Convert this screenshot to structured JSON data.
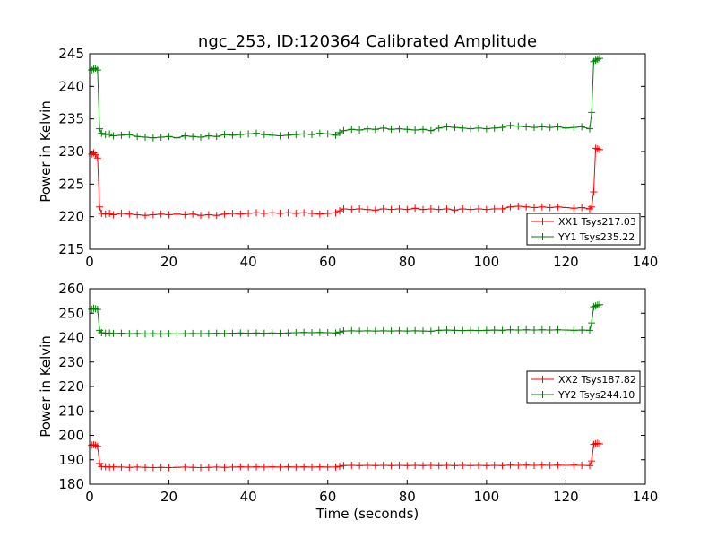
{
  "figure": {
    "title": "ngc_253, ID:120364 Calibrated Amplitude",
    "xlabel": "Time (seconds)"
  },
  "colors": {
    "red": "#ff0000",
    "green": "#008000",
    "axis": "#000000"
  },
  "chart_data": [
    {
      "type": "line",
      "title": "ngc_253, ID:120364 Calibrated Amplitude",
      "xlabel": "",
      "ylabel": "Power in Kelvin",
      "xlim": [
        0,
        140
      ],
      "ylim": [
        215,
        245
      ],
      "xticks": [
        0,
        20,
        40,
        60,
        80,
        100,
        120,
        140
      ],
      "yticks": [
        215,
        220,
        225,
        230,
        235,
        240,
        245
      ],
      "grid": false,
      "legend": "lower-right",
      "series": [
        {
          "name": "XX1 Tsys217.03",
          "color": "#ff0000",
          "x": [
            0.5,
            1,
            1.5,
            2,
            2.5,
            3,
            4,
            5,
            6,
            8,
            10,
            12,
            14,
            16,
            18,
            20,
            22,
            24,
            26,
            28,
            30,
            32,
            34,
            36,
            38,
            40,
            42,
            44,
            46,
            48,
            50,
            52,
            54,
            56,
            58,
            60,
            62,
            63,
            64,
            66,
            68,
            70,
            72,
            74,
            76,
            78,
            80,
            82,
            84,
            86,
            88,
            90,
            92,
            94,
            96,
            98,
            100,
            102,
            104,
            106,
            108,
            110,
            112,
            114,
            116,
            118,
            120,
            122,
            124,
            126,
            126.5,
            127,
            127.5,
            128,
            128.5
          ],
          "values": [
            229.6,
            229.8,
            229.5,
            229.0,
            221.5,
            220.5,
            220.4,
            220.5,
            220.3,
            220.5,
            220.4,
            220.3,
            220.2,
            220.3,
            220.4,
            220.3,
            220.4,
            220.3,
            220.4,
            220.2,
            220.3,
            220.2,
            220.4,
            220.5,
            220.4,
            220.5,
            220.6,
            220.5,
            220.6,
            220.5,
            220.6,
            220.5,
            220.6,
            220.5,
            220.4,
            220.5,
            220.6,
            220.9,
            221.2,
            221.1,
            221.2,
            221.1,
            221.0,
            221.2,
            221.1,
            221.2,
            221.1,
            221.3,
            221.1,
            221.2,
            221.1,
            221.2,
            221.0,
            221.2,
            221.1,
            221.2,
            221.1,
            221.2,
            221.2,
            221.5,
            221.6,
            221.5,
            221.4,
            221.5,
            221.4,
            221.5,
            221.4,
            221.3,
            221.4,
            221.2,
            221.5,
            223.8,
            230.5,
            230.4,
            230.3
          ]
        },
        {
          "name": "YY1 Tsys235.22",
          "color": "#008000",
          "x": [
            0.5,
            1,
            1.5,
            2,
            2.5,
            3,
            4,
            5,
            6,
            8,
            10,
            12,
            14,
            16,
            18,
            20,
            22,
            24,
            26,
            28,
            30,
            32,
            34,
            36,
            38,
            40,
            42,
            44,
            46,
            48,
            50,
            52,
            54,
            56,
            58,
            60,
            62,
            63,
            64,
            66,
            68,
            70,
            72,
            74,
            76,
            78,
            80,
            82,
            84,
            86,
            88,
            90,
            92,
            94,
            96,
            98,
            100,
            102,
            104,
            106,
            108,
            110,
            112,
            114,
            116,
            118,
            120,
            122,
            124,
            126,
            126.5,
            127,
            127.5,
            128,
            128.5
          ],
          "values": [
            242.5,
            242.7,
            242.8,
            242.5,
            233.5,
            232.8,
            232.6,
            232.7,
            232.4,
            232.5,
            232.6,
            232.3,
            232.2,
            232.1,
            232.2,
            232.3,
            232.1,
            232.4,
            232.3,
            232.2,
            232.4,
            232.3,
            232.6,
            232.5,
            232.6,
            232.7,
            232.8,
            232.6,
            232.5,
            232.4,
            232.5,
            232.6,
            232.7,
            232.6,
            232.8,
            232.7,
            232.5,
            232.9,
            233.2,
            233.4,
            233.3,
            233.5,
            233.4,
            233.6,
            233.4,
            233.5,
            233.4,
            233.3,
            233.4,
            233.2,
            233.6,
            233.8,
            233.7,
            233.6,
            233.5,
            233.6,
            233.5,
            233.6,
            233.7,
            234.0,
            233.9,
            233.8,
            233.7,
            233.8,
            233.7,
            233.8,
            233.6,
            233.7,
            233.8,
            233.5,
            236.0,
            243.8,
            244.0,
            244.2,
            244.3
          ]
        }
      ]
    },
    {
      "type": "line",
      "title": "",
      "xlabel": "Time (seconds)",
      "ylabel": "Power in Kelvin",
      "xlim": [
        0,
        140
      ],
      "ylim": [
        180,
        260
      ],
      "xticks": [
        0,
        20,
        40,
        60,
        80,
        100,
        120,
        140
      ],
      "yticks": [
        180,
        190,
        200,
        210,
        220,
        230,
        240,
        250,
        260
      ],
      "grid": false,
      "legend": "center-right",
      "series": [
        {
          "name": "XX2 Tsys187.82",
          "color": "#ff0000",
          "x": [
            0.5,
            1,
            1.5,
            2,
            2.5,
            3,
            4,
            5,
            6,
            8,
            10,
            12,
            14,
            16,
            18,
            20,
            22,
            24,
            26,
            28,
            30,
            32,
            34,
            36,
            38,
            40,
            42,
            44,
            46,
            48,
            50,
            52,
            54,
            56,
            58,
            60,
            62,
            63,
            64,
            66,
            68,
            70,
            72,
            74,
            76,
            78,
            80,
            82,
            84,
            86,
            88,
            90,
            92,
            94,
            96,
            98,
            100,
            102,
            104,
            106,
            108,
            110,
            112,
            114,
            116,
            118,
            120,
            122,
            124,
            126,
            126.5,
            127,
            127.5,
            128,
            128.5
          ],
          "values": [
            196.0,
            196.2,
            195.9,
            195.5,
            188.5,
            187.2,
            187.1,
            187.0,
            187.1,
            187.0,
            186.9,
            187.0,
            186.9,
            186.8,
            186.9,
            186.8,
            186.9,
            187.0,
            186.9,
            186.8,
            186.9,
            187.0,
            186.9,
            187.0,
            187.1,
            187.0,
            187.1,
            187.0,
            187.1,
            187.0,
            187.1,
            187.0,
            187.1,
            187.0,
            187.1,
            187.0,
            187.0,
            187.3,
            187.6,
            187.7,
            187.6,
            187.7,
            187.6,
            187.7,
            187.6,
            187.7,
            187.6,
            187.7,
            187.6,
            187.7,
            187.6,
            187.7,
            187.6,
            187.7,
            187.6,
            187.7,
            187.6,
            187.7,
            187.6,
            187.8,
            187.7,
            187.8,
            187.7,
            187.8,
            187.7,
            187.8,
            187.7,
            187.8,
            187.7,
            187.6,
            189.5,
            196.3,
            196.6,
            196.7,
            196.5
          ]
        },
        {
          "name": "YY2 Tsys244.10",
          "color": "#008000",
          "x": [
            0.5,
            1,
            1.5,
            2,
            2.5,
            3,
            4,
            5,
            6,
            8,
            10,
            12,
            14,
            16,
            18,
            20,
            22,
            24,
            26,
            28,
            30,
            32,
            34,
            36,
            38,
            40,
            42,
            44,
            46,
            48,
            50,
            52,
            54,
            56,
            58,
            60,
            62,
            63,
            64,
            66,
            68,
            70,
            72,
            74,
            76,
            78,
            80,
            82,
            84,
            86,
            88,
            90,
            92,
            94,
            96,
            98,
            100,
            102,
            104,
            106,
            108,
            110,
            112,
            114,
            116,
            118,
            120,
            122,
            124,
            126,
            126.5,
            127,
            127.5,
            128,
            128.5
          ],
          "values": [
            251.6,
            252.0,
            251.8,
            251.5,
            243.0,
            242.0,
            241.8,
            241.9,
            241.7,
            241.8,
            241.6,
            241.7,
            241.5,
            241.6,
            241.5,
            241.6,
            241.5,
            241.6,
            241.7,
            241.6,
            241.7,
            241.8,
            241.7,
            241.8,
            241.9,
            241.8,
            241.9,
            241.8,
            241.9,
            241.8,
            241.9,
            242.0,
            242.1,
            242.0,
            242.1,
            242.0,
            241.9,
            242.3,
            242.7,
            242.8,
            242.7,
            242.8,
            242.7,
            242.8,
            242.7,
            242.8,
            242.7,
            242.8,
            242.7,
            242.6,
            243.0,
            243.1,
            243.0,
            242.9,
            243.0,
            242.9,
            243.0,
            243.1,
            243.0,
            243.2,
            243.1,
            243.2,
            243.1,
            243.2,
            243.1,
            243.2,
            243.1,
            243.0,
            243.1,
            243.0,
            246.0,
            252.6,
            253.0,
            253.3,
            253.5
          ]
        }
      ]
    }
  ]
}
